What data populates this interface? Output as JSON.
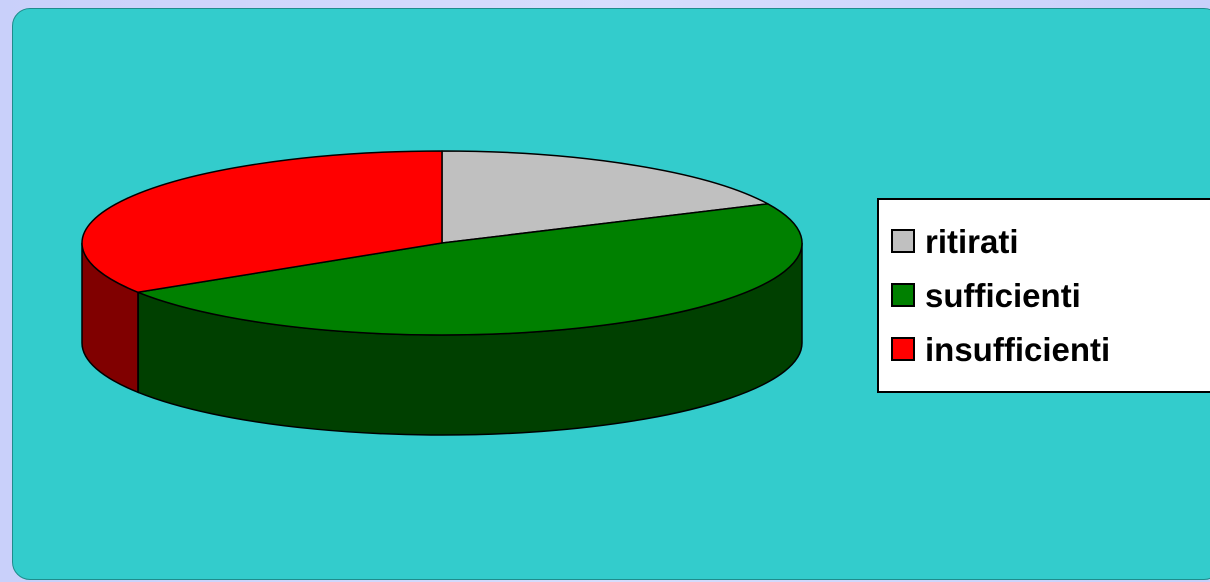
{
  "chart_data": {
    "type": "pie",
    "three_d": true,
    "start_angle_deg": -90,
    "direction": "clockwise",
    "slices": [
      {
        "label": "ritirati",
        "value": 18,
        "color": "#c0c0c0",
        "side_color": "#8c8c8c"
      },
      {
        "label": "sufficienti",
        "value": 48,
        "color": "#008000",
        "side_color": "#004000"
      },
      {
        "label": "insufficienti",
        "value": 34,
        "color": "#ff0000",
        "side_color": "#800000"
      }
    ],
    "legend_position": "right",
    "background_color": "#33cccc",
    "title": ""
  }
}
